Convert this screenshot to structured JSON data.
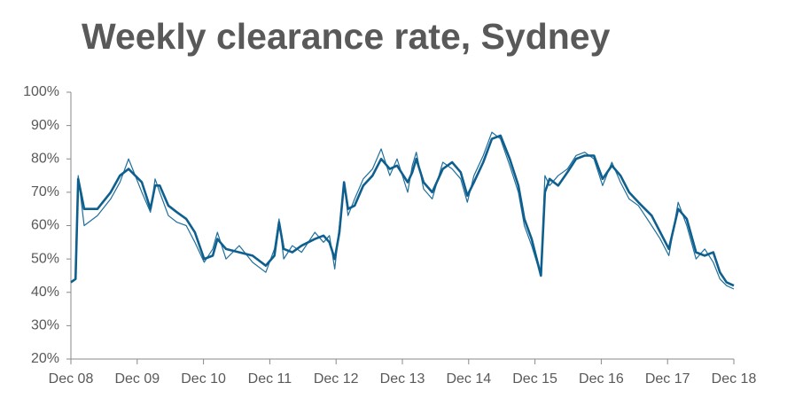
{
  "chart_data": {
    "type": "line",
    "title": "Weekly clearance rate, Sydney",
    "x": [
      0,
      0.07,
      0.11,
      0.2,
      0.4,
      0.6,
      0.74,
      0.87,
      1.07,
      1.2,
      1.27,
      1.34,
      1.47,
      1.6,
      1.74,
      1.87,
      2.01,
      2.14,
      2.21,
      2.34,
      2.54,
      2.74,
      2.94,
      3.07,
      3.14,
      3.21,
      3.34,
      3.48,
      3.68,
      3.81,
      3.9,
      3.98,
      4.05,
      4.12,
      4.18,
      4.28,
      4.41,
      4.55,
      4.68,
      4.81,
      4.92,
      5.08,
      5.15,
      5.21,
      5.32,
      5.45,
      5.61,
      5.75,
      5.88,
      5.98,
      6.08,
      6.22,
      6.35,
      6.48,
      6.62,
      6.75,
      6.84,
      6.95,
      7.09,
      7.15,
      7.22,
      7.35,
      7.49,
      7.62,
      7.75,
      7.89,
      8.02,
      8.16,
      8.29,
      8.42,
      8.56,
      8.76,
      8.89,
      9.02,
      9.16,
      9.29,
      9.43,
      9.56,
      9.69,
      9.79,
      9.89,
      10
    ],
    "series": [
      {
        "color": "#1f6f9c",
        "values": [
          43,
          44,
          75,
          60,
          63,
          68,
          73,
          80,
          70,
          64,
          74,
          70,
          63,
          61,
          60,
          55,
          49,
          53,
          58,
          50,
          54,
          49,
          46,
          53,
          62,
          50,
          54,
          52,
          58,
          55,
          57,
          47,
          60,
          73,
          63,
          68,
          74,
          77,
          83,
          75,
          80,
          70,
          78,
          82,
          71,
          68,
          79,
          77,
          74,
          67,
          75,
          81,
          88,
          86,
          78,
          70,
          60,
          54,
          45,
          75,
          72,
          75,
          77,
          81,
          82,
          80,
          72,
          79,
          73,
          68,
          66,
          60,
          56,
          51,
          67,
          60,
          50,
          53,
          49,
          44,
          42,
          41
        ]
      },
      {
        "color": "#0e5f8e",
        "values": [
          43,
          44,
          74,
          65,
          65,
          70,
          75,
          77,
          73,
          65,
          72,
          72,
          66,
          64,
          62,
          58,
          50,
          51,
          56,
          53,
          52,
          51,
          48,
          51,
          61,
          53,
          52,
          54,
          56,
          57,
          55,
          50,
          58,
          73,
          65,
          66,
          72,
          75,
          80,
          77,
          78,
          73,
          76,
          80,
          73,
          70,
          77,
          79,
          76,
          69,
          73,
          79,
          86,
          87,
          80,
          72,
          62,
          56,
          45,
          70,
          74,
          72,
          76,
          80,
          81,
          81,
          74,
          78,
          75,
          70,
          67,
          63,
          58,
          53,
          65,
          62,
          52,
          51,
          52,
          46,
          43,
          42
        ]
      }
    ],
    "xlim": [
      0,
      10
    ],
    "xticks": [
      {
        "value": 0,
        "label": "Dec 08"
      },
      {
        "value": 1,
        "label": "Dec 09"
      },
      {
        "value": 2,
        "label": "Dec 10"
      },
      {
        "value": 3,
        "label": "Dec 11"
      },
      {
        "value": 4,
        "label": "Dec 12"
      },
      {
        "value": 5,
        "label": "Dec 13"
      },
      {
        "value": 6,
        "label": "Dec 14"
      },
      {
        "value": 7,
        "label": "Dec 15"
      },
      {
        "value": 8,
        "label": "Dec 16"
      },
      {
        "value": 9,
        "label": "Dec 17"
      },
      {
        "value": 10,
        "label": "Dec 18"
      }
    ],
    "ylim": [
      20,
      100
    ],
    "yticks": [
      {
        "value": 20,
        "label": "20%"
      },
      {
        "value": 30,
        "label": "30%"
      },
      {
        "value": 40,
        "label": "40%"
      },
      {
        "value": 50,
        "label": "50%"
      },
      {
        "value": 60,
        "label": "60%"
      },
      {
        "value": 70,
        "label": "70%"
      },
      {
        "value": 80,
        "label": "80%"
      },
      {
        "value": 90,
        "label": "90%"
      },
      {
        "value": 100,
        "label": "100%"
      }
    ],
    "grid": false
  }
}
